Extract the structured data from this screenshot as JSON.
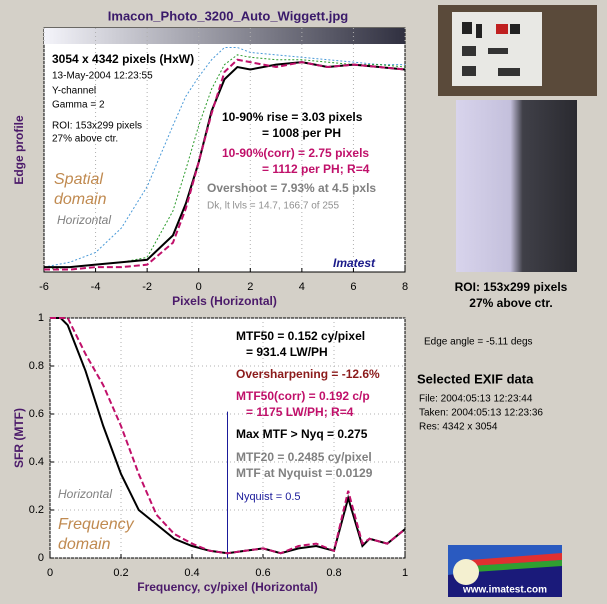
{
  "chart_data": [
    {
      "type": "line",
      "title": "Imacon_Photo_3200_Auto_Wiggett.jpg",
      "xlabel": "Pixels (Horizontal)",
      "ylabel": "Edge profile",
      "x": [
        -6,
        -5,
        -4,
        -3,
        -2,
        -1,
        -0.5,
        0,
        0.5,
        1,
        1.5,
        2,
        3,
        4,
        5,
        6,
        7,
        8
      ],
      "xlim": [
        -6,
        8
      ],
      "xticks": [
        -6,
        -4,
        -2,
        0,
        2,
        4,
        6,
        8
      ],
      "ylim": [
        0,
        1
      ],
      "grid": true,
      "series": [
        {
          "color": "#4a9ad8",
          "style": "dotted",
          "values": [
            0.02,
            0.04,
            0.08,
            0.18,
            0.35,
            0.6,
            0.72,
            0.8,
            0.87,
            0.92,
            0.92,
            0.9,
            0.89,
            0.88,
            0.87,
            0.86,
            0.85,
            0.85
          ]
        },
        {
          "color": "#2a9a2a",
          "style": "dotted",
          "values": [
            0.01,
            0.02,
            0.03,
            0.04,
            0.06,
            0.25,
            0.42,
            0.6,
            0.75,
            0.85,
            0.89,
            0.88,
            0.87,
            0.87,
            0.86,
            0.85,
            0.85,
            0.84
          ]
        },
        {
          "color": "#000000",
          "style": "solid",
          "values": [
            0.02,
            0.02,
            0.03,
            0.04,
            0.05,
            0.15,
            0.28,
            0.45,
            0.66,
            0.79,
            0.84,
            0.83,
            0.85,
            0.86,
            0.84,
            0.85,
            0.84,
            0.83
          ]
        },
        {
          "color": "#c0106a",
          "style": "dashed",
          "values": [
            0.01,
            0.01,
            0.02,
            0.02,
            0.03,
            0.12,
            0.26,
            0.45,
            0.65,
            0.82,
            0.87,
            0.86,
            0.84,
            0.86,
            0.84,
            0.85,
            0.84,
            0.83
          ]
        }
      ],
      "annotations": [
        {
          "text": "3054 x 4342 pixels (HxW)",
          "color": "#000000"
        },
        {
          "text": "13-May-2004 12:23:55",
          "color": "#000000"
        },
        {
          "text": "Y-channel",
          "color": "#000000"
        },
        {
          "text": "Gamma = 2",
          "color": "#000000"
        },
        {
          "text": "ROI: 153x299 pixels",
          "color": "#000000"
        },
        {
          "text": "27% above ctr.",
          "color": "#000000"
        },
        {
          "text": "10-90% rise = 3.03 pixels",
          "color": "#000000"
        },
        {
          "text": "= 1008 per PH",
          "color": "#000000"
        },
        {
          "text": "10-90%(corr) = 2.75 pixels",
          "color": "#c0106a"
        },
        {
          "text": "= 1112 per PH;  R=4",
          "color": "#c0106a"
        },
        {
          "text": "Overshoot = 7.93% at 4.5 pxls",
          "color": "#808080"
        },
        {
          "text": "Dk, lt lvls = 14.7, 166.7 of 255",
          "color": "#909090"
        },
        {
          "text": "Spatial",
          "color": "#c08a50"
        },
        {
          "text": "domain",
          "color": "#c08a50"
        },
        {
          "text": "Horizontal",
          "color": "#808080"
        },
        {
          "text": "Imatest",
          "color": "#1a1a8a"
        }
      ]
    },
    {
      "type": "line",
      "xlabel": "Frequency,  cy/pixel (Horizontal)",
      "ylabel": "SFR (MTF)",
      "x": [
        0,
        0.03,
        0.05,
        0.1,
        0.15,
        0.2,
        0.25,
        0.3,
        0.35,
        0.4,
        0.45,
        0.5,
        0.55,
        0.6,
        0.65,
        0.7,
        0.75,
        0.8,
        0.84,
        0.88,
        0.9,
        0.95,
        1
      ],
      "xlim": [
        0,
        1
      ],
      "xticks": [
        0,
        0.2,
        0.4,
        0.6,
        0.8,
        1
      ],
      "ylim": [
        0,
        1
      ],
      "yticks": [
        0,
        0.2,
        0.4,
        0.6,
        0.8,
        1
      ],
      "grid": true,
      "series": [
        {
          "color": "#000000",
          "style": "solid",
          "values": [
            1,
            1,
            0.97,
            0.78,
            0.55,
            0.35,
            0.2,
            0.14,
            0.08,
            0.05,
            0.03,
            0.02,
            0.03,
            0.04,
            0.02,
            0.04,
            0.05,
            0.03,
            0.25,
            0.05,
            0.08,
            0.06,
            0.12
          ]
        },
        {
          "color": "#c0106a",
          "style": "dashed",
          "values": [
            1,
            1,
            1,
            0.85,
            0.72,
            0.55,
            0.35,
            0.18,
            0.1,
            0.06,
            0.03,
            0.02,
            0.03,
            0.04,
            0.02,
            0.05,
            0.06,
            0.03,
            0.28,
            0.06,
            0.08,
            0.06,
            0.12
          ]
        }
      ],
      "nyquist": {
        "x": 0.5,
        "color": "#1a1a9a"
      },
      "annotations": [
        {
          "text": "MTF50 = 0.152 cy/pixel",
          "color": "#000000"
        },
        {
          "text": "= 931.4 LW/PH",
          "color": "#000000"
        },
        {
          "text": "Oversharpening = -12.6%",
          "color": "#8b1a1a"
        },
        {
          "text": "MTF50(corr) = 0.192 c/p",
          "color": "#c0106a"
        },
        {
          "text": "= 1175 LW/PH;  R=4",
          "color": "#c0106a"
        },
        {
          "text": "Max MTF > Nyq = 0.275",
          "color": "#000000"
        },
        {
          "text": "MTF20 = 0.2485 cy/pixel",
          "color": "#808080"
        },
        {
          "text": "MTF at Nyquist = 0.0129",
          "color": "#808080"
        },
        {
          "text": "Nyquist = 0.5",
          "color": "#1a1a9a"
        },
        {
          "text": "Horizontal",
          "color": "#808080"
        },
        {
          "text": "Frequency",
          "color": "#c08a50"
        },
        {
          "text": "domain",
          "color": "#c08a50"
        }
      ]
    }
  ],
  "panel": {
    "roi": "ROI: 153x299 pixels",
    "roi_pos": "27% above ctr.",
    "edge_angle": "Edge angle = -5.11 degs",
    "exif_title": "Selected EXIF data",
    "exif": [
      "File:  2004:05:13 12:23:44",
      "Taken:  2004:05:13 12:23:36",
      "Res:    4342 x 3054"
    ],
    "logo": "www.imatest.com"
  }
}
